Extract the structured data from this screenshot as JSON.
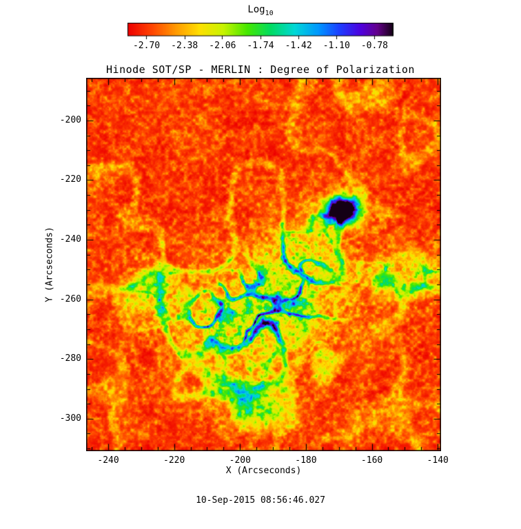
{
  "page": {
    "background": "#ffffff"
  },
  "chart_data": {
    "type": "heatmap",
    "title": "Hinode SOT/SP - MERLIN : Degree of Polarization",
    "xlabel": "X (Arcseconds)",
    "ylabel": "Y (Arcseconds)",
    "timestamp": "10-Sep-2015 08:56:46.027",
    "x_ticks": [
      -240,
      -220,
      -200,
      -180,
      -160,
      -140
    ],
    "y_ticks": [
      -300,
      -280,
      -260,
      -240,
      -220,
      -200
    ],
    "x_range": [
      -246.7,
      -139.0
    ],
    "y_range": [
      -310.9,
      -185.7
    ],
    "minor_tick_step": 5,
    "grid": false,
    "legend": "none",
    "colorbar": {
      "label_main": "Log",
      "label_sub": "10",
      "orientation": "horizontal",
      "tick_labels": [
        "-2.70",
        "-2.38",
        "-2.06",
        "-1.74",
        "-1.42",
        "-1.10",
        "-0.78"
      ],
      "value_range": [
        -2.86,
        -0.62
      ],
      "stops": [
        [
          0.0,
          "#ee0000"
        ],
        [
          0.09,
          "#ff4400"
        ],
        [
          0.18,
          "#ff9900"
        ],
        [
          0.27,
          "#ffe000"
        ],
        [
          0.36,
          "#c8f400"
        ],
        [
          0.45,
          "#46e800"
        ],
        [
          0.54,
          "#00dc64"
        ],
        [
          0.63,
          "#00d8d8"
        ],
        [
          0.72,
          "#0096ff"
        ],
        [
          0.8,
          "#1e3cff"
        ],
        [
          0.88,
          "#5000dc"
        ],
        [
          0.94,
          "#64008c"
        ],
        [
          1.0,
          "#140014"
        ]
      ]
    },
    "field": {
      "background_log10_dop": -2.6,
      "noise_seed": 1234567,
      "features": [
        {
          "name": "dark-pore",
          "type": "pore",
          "x": -169,
          "y": -230,
          "sigma_x": 3.2,
          "sigma_y": 2.8,
          "strength": 1.3
        },
        {
          "name": "pore-halo",
          "type": "plage",
          "x": -171,
          "y": -231,
          "sigma_x": 7,
          "sigma_y": 5,
          "weight": 0.5
        },
        {
          "name": "plage-core",
          "type": "plage",
          "x": -188,
          "y": -262,
          "sigma_x": 13,
          "sigma_y": 11,
          "weight": 1.0
        },
        {
          "name": "plage-west",
          "type": "plage",
          "x": -206,
          "y": -268,
          "sigma_x": 9,
          "sigma_y": 8,
          "weight": 0.7
        },
        {
          "name": "plage-north",
          "type": "plage",
          "x": -182,
          "y": -243,
          "sigma_x": 8,
          "sigma_y": 6,
          "weight": 0.6
        },
        {
          "name": "left-network-loop",
          "type": "plage",
          "x": -226,
          "y": -259,
          "sigma_x": 7,
          "sigma_y": 9,
          "weight": 0.5
        },
        {
          "name": "right-arm",
          "type": "plage",
          "x": -149,
          "y": -251,
          "sigma_x": 10,
          "sigma_y": 5,
          "weight": 0.6
        },
        {
          "name": "south-arm",
          "type": "plage",
          "x": -198,
          "y": -292,
          "sigma_x": 9,
          "sigma_y": 7,
          "weight": 0.55
        }
      ]
    }
  }
}
